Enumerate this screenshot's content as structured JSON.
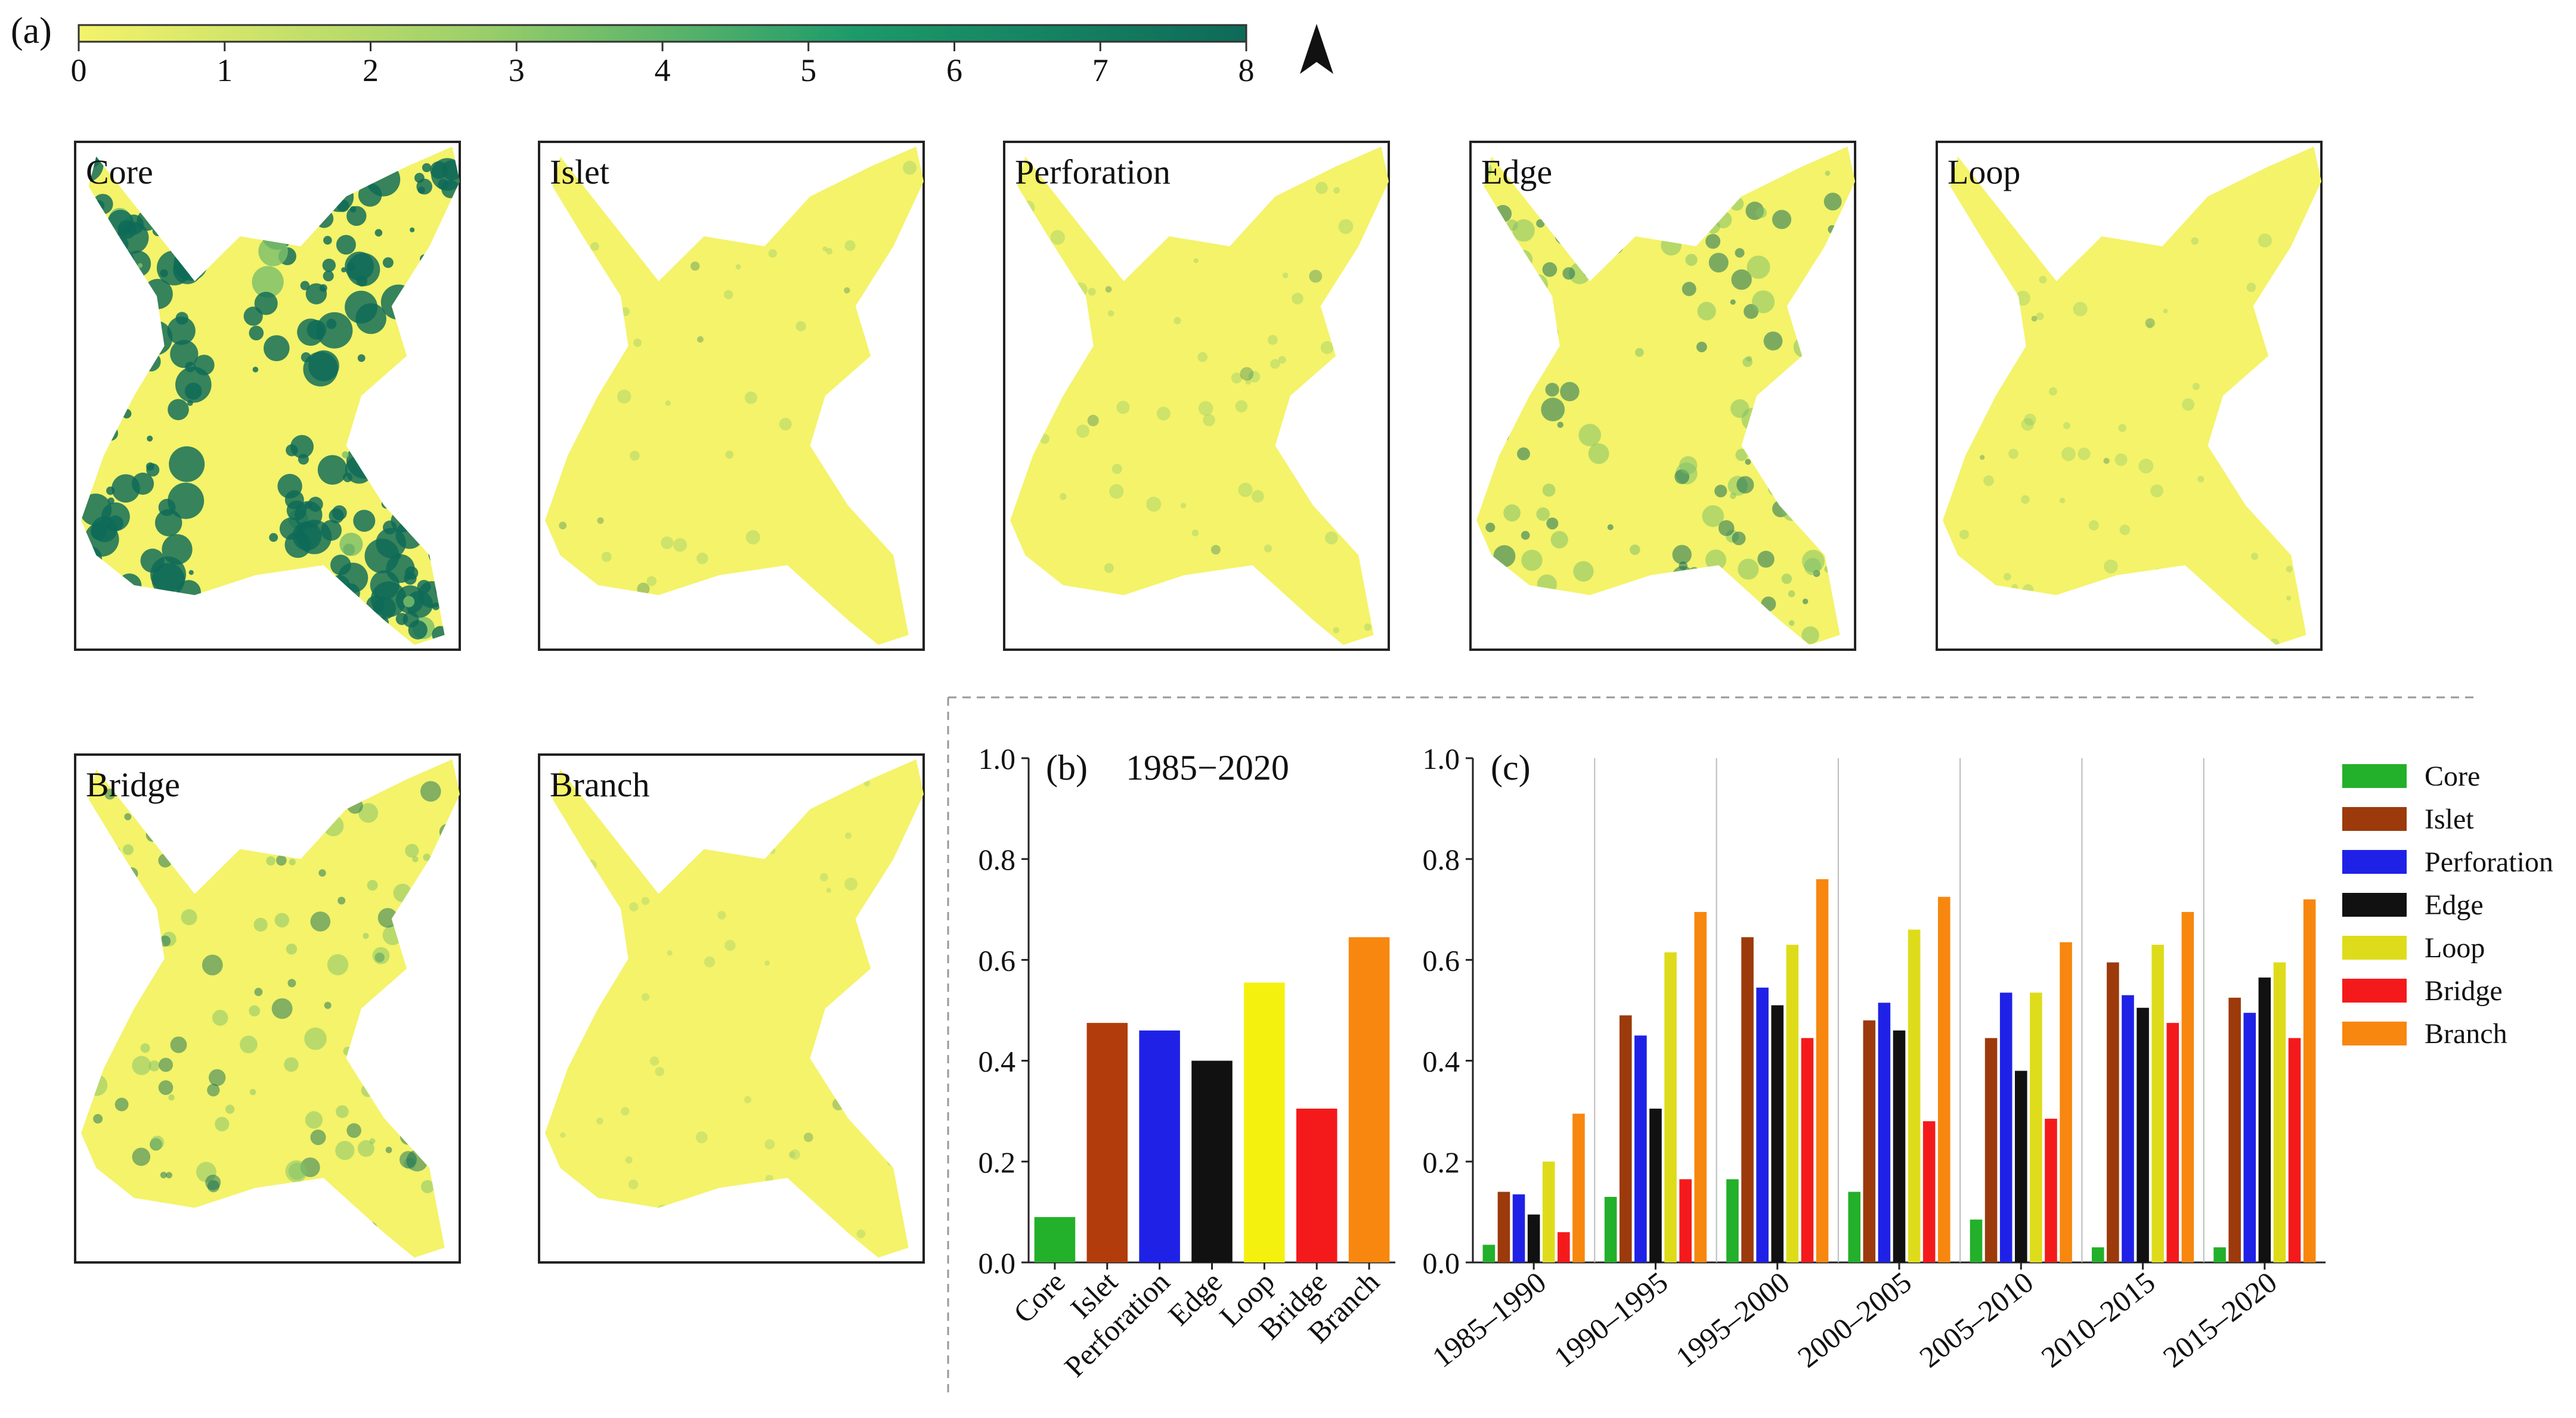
{
  "panel_a": {
    "label": "(a)",
    "colorbar": {
      "min": 0,
      "max": 8,
      "ticks": [
        "0",
        "1",
        "2",
        "3",
        "4",
        "5",
        "6",
        "7",
        "8"
      ],
      "colors": [
        "#f4f36a",
        "#9fd06a",
        "#1c9a6a",
        "#0e6a58"
      ]
    },
    "maps": [
      {
        "name": "Core",
        "intensity": 0.95
      },
      {
        "name": "Islet",
        "intensity": 0.1
      },
      {
        "name": "Perforation",
        "intensity": 0.12
      },
      {
        "name": "Edge",
        "intensity": 0.45
      },
      {
        "name": "Loop",
        "intensity": 0.12
      },
      {
        "name": "Bridge",
        "intensity": 0.4
      },
      {
        "name": "Branch",
        "intensity": 0.05
      }
    ],
    "colors": {
      "map_fill": "#f4f36a",
      "map_dark": "#0e6a58",
      "map_mid": "#7cc06a"
    }
  },
  "chart_data": [
    {
      "type": "bar",
      "panel": "(b)",
      "title": "1985−2020",
      "categories": [
        "Core",
        "Islet",
        "Perforation",
        "Edge",
        "Loop",
        "Bridge",
        "Branch"
      ],
      "values": [
        0.09,
        0.475,
        0.46,
        0.4,
        0.555,
        0.305,
        0.645
      ],
      "colors": [
        "#23b02a",
        "#b23c0c",
        "#1f22e6",
        "#111111",
        "#f5f10f",
        "#f41a1c",
        "#f7870f"
      ],
      "ylim": [
        0,
        1.0
      ],
      "yticks": [
        "0.0",
        "0.2",
        "0.4",
        "0.6",
        "0.8",
        "1.0"
      ],
      "xlabel": "",
      "ylabel": ""
    },
    {
      "type": "bar",
      "panel": "(c)",
      "title": "",
      "categories": [
        "1985–1990",
        "1990–1995",
        "1995–2000",
        "2000–2005",
        "2005–2010",
        "2010–2015",
        "2015–2020"
      ],
      "series": [
        {
          "name": "Core",
          "color": "#23b02a",
          "values": [
            0.035,
            0.13,
            0.165,
            0.14,
            0.085,
            0.03,
            0.03
          ]
        },
        {
          "name": "Islet",
          "color": "#9c3a0c",
          "values": [
            0.14,
            0.49,
            0.645,
            0.48,
            0.445,
            0.595,
            0.525
          ]
        },
        {
          "name": "Perforation",
          "color": "#1f22e6",
          "values": [
            0.135,
            0.45,
            0.545,
            0.515,
            0.535,
            0.53,
            0.495
          ]
        },
        {
          "name": "Edge",
          "color": "#111111",
          "values": [
            0.095,
            0.305,
            0.51,
            0.46,
            0.38,
            0.505,
            0.565
          ]
        },
        {
          "name": "Loop",
          "color": "#dedc1a",
          "values": [
            0.2,
            0.615,
            0.63,
            0.66,
            0.535,
            0.63,
            0.595
          ]
        },
        {
          "name": "Bridge",
          "color": "#f41a1c",
          "values": [
            0.06,
            0.165,
            0.445,
            0.28,
            0.285,
            0.475,
            0.445
          ]
        },
        {
          "name": "Branch",
          "color": "#f7870f",
          "values": [
            0.295,
            0.695,
            0.76,
            0.725,
            0.635,
            0.695,
            0.72
          ]
        }
      ],
      "ylim": [
        0,
        1.0
      ],
      "yticks": [
        "0.0",
        "0.2",
        "0.4",
        "0.6",
        "0.8",
        "1.0"
      ],
      "xlabel": "",
      "ylabel": ""
    }
  ]
}
